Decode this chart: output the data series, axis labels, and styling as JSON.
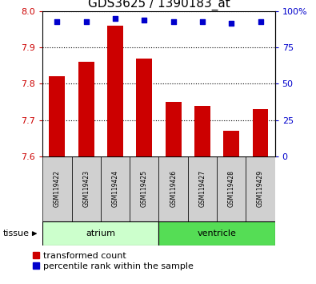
{
  "title": "GDS3625 / 1390183_at",
  "samples": [
    "GSM119422",
    "GSM119423",
    "GSM119424",
    "GSM119425",
    "GSM119426",
    "GSM119427",
    "GSM119428",
    "GSM119429"
  ],
  "bar_values": [
    7.82,
    7.86,
    7.96,
    7.87,
    7.75,
    7.74,
    7.67,
    7.73
  ],
  "percentile_values": [
    93,
    93,
    95,
    94,
    93,
    93,
    92,
    93
  ],
  "bar_color": "#cc0000",
  "dot_color": "#0000cc",
  "ylim_left": [
    7.6,
    8.0
  ],
  "ylim_right": [
    0,
    100
  ],
  "yticks_left": [
    7.6,
    7.7,
    7.8,
    7.9,
    8.0
  ],
  "yticks_right": [
    0,
    25,
    50,
    75,
    100
  ],
  "ytick_right_labels": [
    "0",
    "25",
    "50",
    "75",
    "100%"
  ],
  "grid_values": [
    7.7,
    7.8,
    7.9
  ],
  "tissue_groups": [
    {
      "label": "atrium",
      "samples": [
        0,
        1,
        2,
        3
      ],
      "color": "#ccffcc"
    },
    {
      "label": "ventricle",
      "samples": [
        4,
        5,
        6,
        7
      ],
      "color": "#55dd55"
    }
  ],
  "tissue_label": "tissue",
  "legend_bar_label": "transformed count",
  "legend_dot_label": "percentile rank within the sample",
  "bar_width": 0.55,
  "baseline": 7.6,
  "bg_color": "#ffffff",
  "sample_box_color": "#d0d0d0",
  "bar_color_left_axis": "#cc0000",
  "tick_label_color_right": "#0000cc",
  "title_fontsize": 11,
  "tick_fontsize": 8,
  "legend_fontsize": 8
}
